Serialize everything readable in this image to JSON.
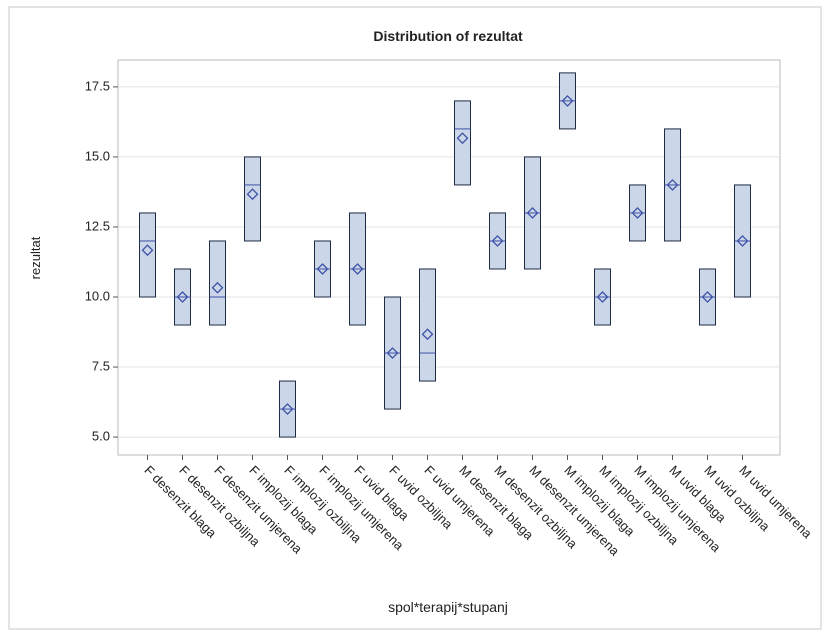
{
  "chart_data": {
    "type": "box",
    "title": "Distribution of rezultat",
    "x_label": "spol*terapij*stupanj",
    "y_label": "rezultat",
    "categories": [
      "F desenzit blaga",
      "F desenzit ozbiljna",
      "F desenzit umjerena",
      "F implozij blaga",
      "F implozij ozbiljna",
      "F implozij umjerena",
      "F uvid blaga",
      "F uvid ozbiljna",
      "F uvid umjerena",
      "M desenzit blaga",
      "M desenzit ozbiljna",
      "M desenzit umjerena",
      "M implozij blaga",
      "M implozij ozbiljna",
      "M implozij umjerena",
      "M uvid blaga",
      "M uvid ozbiljna",
      "M uvid umjerena"
    ],
    "q1": [
      10,
      9,
      9,
      12,
      5,
      10,
      9,
      6,
      7,
      14,
      11,
      11,
      16,
      9,
      12,
      12,
      9,
      10
    ],
    "median": [
      12,
      10,
      10,
      14,
      6,
      11,
      11,
      8,
      8,
      16,
      12,
      13,
      17,
      10,
      13,
      14,
      10,
      12
    ],
    "q3": [
      13,
      11,
      12,
      15,
      7,
      12,
      13,
      10,
      11,
      17,
      13,
      15,
      18,
      11,
      14,
      16,
      11,
      14
    ],
    "mean": [
      11.67,
      10,
      10.33,
      13.67,
      6,
      11,
      11,
      8,
      8.67,
      15.67,
      12,
      13,
      17,
      10,
      13,
      14,
      10,
      12
    ],
    "color": "#cbd6e8",
    "mean_color": "#3e52a8",
    "ylim": [
      4.36,
      18.46
    ],
    "yticks": [
      {
        "value": 5,
        "label": "5.0"
      },
      {
        "value": 7.5,
        "label": "7.5"
      },
      {
        "value": 10,
        "label": "10.0"
      },
      {
        "value": 12.5,
        "label": "12.5"
      },
      {
        "value": 15,
        "label": "15.0"
      },
      {
        "value": 17.5,
        "label": "17.5"
      }
    ],
    "grid": true
  }
}
